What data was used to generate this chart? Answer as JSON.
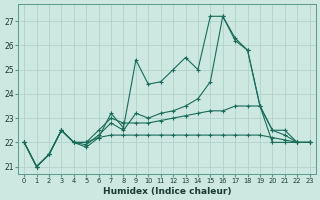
{
  "xlabel": "Humidex (Indice chaleur)",
  "background_color": "#cce8e0",
  "grid_color": "#aacfc8",
  "line_color": "#1a6b5a",
  "ylim": [
    20.7,
    27.7
  ],
  "yticks": [
    21,
    22,
    23,
    24,
    25,
    26,
    27
  ],
  "xticks": [
    0,
    1,
    2,
    3,
    4,
    5,
    6,
    7,
    8,
    9,
    10,
    11,
    12,
    13,
    14,
    15,
    16,
    17,
    18,
    19,
    20,
    21,
    22,
    23
  ],
  "line1": [
    22.0,
    21.0,
    21.5,
    22.5,
    22.0,
    21.8,
    22.2,
    23.2,
    22.6,
    25.4,
    24.4,
    24.5,
    25.0,
    25.5,
    25.0,
    27.2,
    27.2,
    26.3,
    25.8,
    23.5,
    22.0,
    22.0,
    22.0,
    22.0
  ],
  "line2": [
    22.0,
    21.0,
    21.5,
    22.5,
    22.0,
    21.9,
    22.3,
    22.8,
    22.5,
    23.2,
    23.0,
    23.2,
    23.3,
    23.5,
    23.8,
    24.5,
    27.2,
    26.2,
    25.8,
    23.5,
    22.5,
    22.3,
    22.0,
    22.0
  ],
  "line3": [
    22.0,
    21.0,
    21.5,
    22.5,
    22.0,
    22.0,
    22.5,
    23.0,
    22.8,
    22.8,
    22.8,
    22.9,
    23.0,
    23.1,
    23.2,
    23.3,
    23.3,
    23.5,
    23.5,
    23.5,
    22.5,
    22.5,
    22.0,
    22.0
  ],
  "line4": [
    22.0,
    21.0,
    21.5,
    22.5,
    22.0,
    22.0,
    22.2,
    22.3,
    22.3,
    22.3,
    22.3,
    22.3,
    22.3,
    22.3,
    22.3,
    22.3,
    22.3,
    22.3,
    22.3,
    22.3,
    22.2,
    22.1,
    22.0,
    22.0
  ]
}
